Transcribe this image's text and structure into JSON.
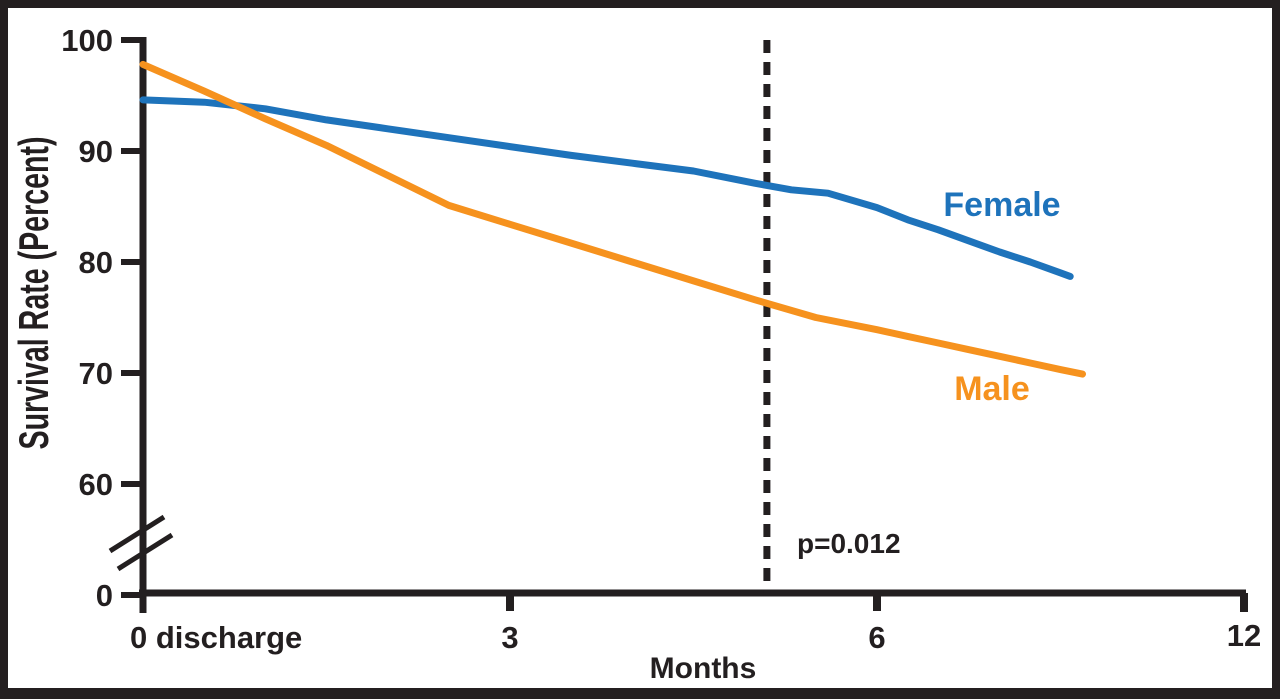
{
  "figure": {
    "frame_color": "#241f20",
    "background": "#ffffff",
    "ink_color": "#231f20"
  },
  "chart_data": {
    "type": "line",
    "title": "",
    "xlabel": "Months",
    "ylabel": "Survival Rate (Percent)",
    "x_tick_values": [
      0,
      3,
      6,
      12
    ],
    "x_tick_labels": [
      "0 discharge",
      "3",
      "6",
      "12"
    ],
    "x_axis_note": "tick spacing 0-3-6-12 is visually equal, so the scale is compressed 2x after month 6",
    "y_tick_labels": [
      "100",
      "90",
      "80",
      "70",
      "60",
      "0"
    ],
    "y_axis_break": "double slash break marks on the y-axis between 60 and 0",
    "ylim_display": [
      60,
      100
    ],
    "series": [
      {
        "name": "Female",
        "color": "#1e73bb",
        "x": [
          0,
          0.5,
          1,
          1.5,
          2,
          2.5,
          3,
          3.5,
          4,
          4.5,
          5,
          5.3,
          5.6,
          6,
          6.5,
          7,
          7.5,
          8,
          8.5,
          9,
          9.15
        ],
        "y": [
          94.6,
          94.4,
          93.8,
          92.8,
          92.0,
          91.2,
          90.4,
          89.6,
          88.9,
          88.2,
          87.1,
          86.5,
          86.2,
          84.9,
          83.8,
          82.9,
          81.9,
          80.9,
          80.0,
          79.0,
          78.7
        ]
      },
      {
        "name": "Male",
        "color": "#f6921e",
        "x": [
          0,
          0.5,
          1,
          1.5,
          2,
          2.5,
          3,
          3.5,
          4,
          4.5,
          5,
          5.5,
          6,
          6.5,
          7,
          7.5,
          8,
          8.5,
          9,
          9.35
        ],
        "y": [
          97.8,
          95.4,
          92.9,
          90.5,
          87.8,
          85.1,
          83.4,
          81.7,
          80.0,
          78.3,
          76.6,
          75.0,
          73.9,
          73.3,
          72.7,
          72.1,
          71.5,
          70.9,
          70.3,
          69.9
        ]
      }
    ],
    "reference_line": {
      "x": 5.1,
      "style": "dashed",
      "color": "#231f20"
    },
    "annotations": [
      {
        "text": "p=0.012"
      }
    ],
    "legend_position": "labels next to line ends, right side"
  }
}
